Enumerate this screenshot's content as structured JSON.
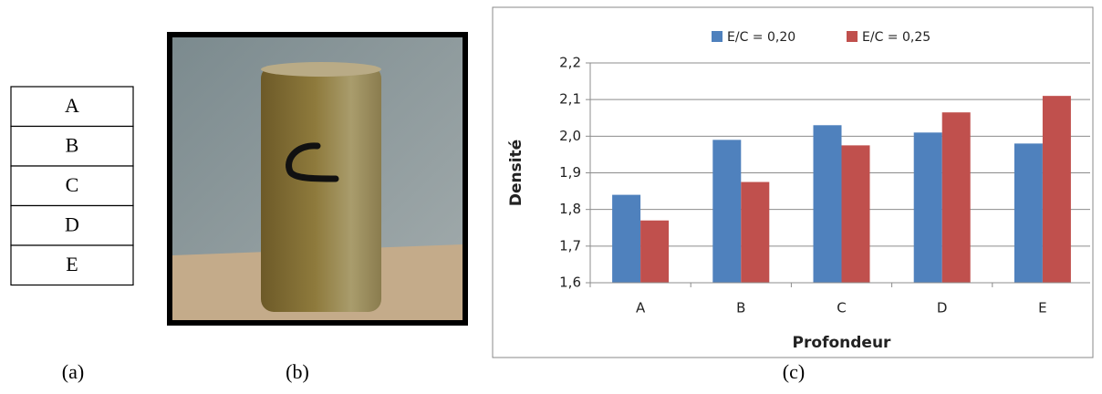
{
  "table": {
    "rows": [
      "A",
      "B",
      "C",
      "D",
      "E"
    ]
  },
  "labels": [
    "(a)",
    "(b)",
    "(c)"
  ],
  "chart_data": {
    "type": "bar",
    "categories": [
      "A",
      "B",
      "C",
      "D",
      "E"
    ],
    "series": [
      {
        "name": "E/C = 0,20",
        "color": "#4f81bd",
        "values": [
          1.84,
          1.99,
          2.03,
          2.01,
          1.98
        ]
      },
      {
        "name": "E/C = 0,25",
        "color": "#c0504d",
        "values": [
          1.77,
          1.875,
          1.975,
          2.065,
          2.11
        ]
      }
    ],
    "xlabel": "Profondeur",
    "ylabel": "Densité",
    "ylim": [
      1.6,
      2.2
    ],
    "yticks": [
      {
        "value": 1.6,
        "label": "1,6"
      },
      {
        "value": 1.7,
        "label": "1,7"
      },
      {
        "value": 1.8,
        "label": "1,8"
      },
      {
        "value": 1.9,
        "label": "1,9"
      },
      {
        "value": 2.0,
        "label": "2,0"
      },
      {
        "value": 2.1,
        "label": "2,1"
      },
      {
        "value": 2.2,
        "label": "2,2"
      }
    ],
    "grid": true,
    "legend": "top"
  }
}
